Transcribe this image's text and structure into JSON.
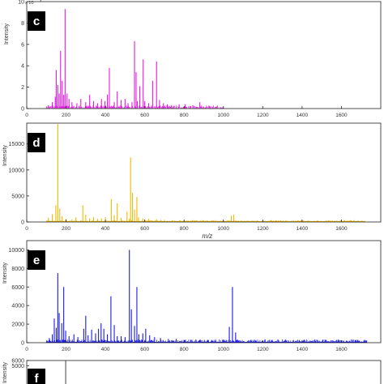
{
  "chart_data": [
    {
      "type": "line",
      "panel_label": "c",
      "ylabel": "Intensity",
      "exponent": "x 10",
      "exponent_power": "4",
      "xlim": [
        0,
        1800
      ],
      "ylim": [
        0,
        10
      ],
      "xticks": [
        "0",
        "200",
        "400",
        "600",
        "800",
        "1000",
        "1200",
        "1400",
        "1600"
      ],
      "yticks": [
        "0",
        "2",
        "4",
        "6",
        "8",
        "10"
      ],
      "color": "#e619e6",
      "peaks": [
        [
          110,
          0.3
        ],
        [
          130,
          0.6
        ],
        [
          145,
          1.1
        ],
        [
          150,
          3.6
        ],
        [
          158,
          2.2
        ],
        [
          165,
          1.4
        ],
        [
          172,
          5.4
        ],
        [
          180,
          2.6
        ],
        [
          188,
          1.3
        ],
        [
          195,
          9.3
        ],
        [
          205,
          1.4
        ],
        [
          215,
          0.9
        ],
        [
          230,
          0.6
        ],
        [
          255,
          0.5
        ],
        [
          275,
          0.9
        ],
        [
          300,
          0.6
        ],
        [
          320,
          1.3
        ],
        [
          340,
          0.7
        ],
        [
          360,
          0.5
        ],
        [
          380,
          0.9
        ],
        [
          398,
          0.7
        ],
        [
          410,
          1.3
        ],
        [
          420,
          3.8
        ],
        [
          445,
          0.6
        ],
        [
          460,
          1.6
        ],
        [
          480,
          0.8
        ],
        [
          500,
          0.9
        ],
        [
          515,
          0.5
        ],
        [
          535,
          0.6
        ],
        [
          548,
          6.3
        ],
        [
          556,
          3.4
        ],
        [
          562,
          0.7
        ],
        [
          575,
          2.1
        ],
        [
          592,
          4.6
        ],
        [
          600,
          0.7
        ],
        [
          620,
          0.5
        ],
        [
          640,
          2.6
        ],
        [
          660,
          4.4
        ],
        [
          675,
          0.8
        ],
        [
          695,
          0.5
        ],
        [
          715,
          0.4
        ],
        [
          735,
          0.3
        ],
        [
          775,
          0.4
        ],
        [
          805,
          0.4
        ],
        [
          845,
          0.3
        ],
        [
          880,
          0.6
        ]
      ],
      "noise": {
        "from": 100,
        "to": 1000,
        "max": 0.3
      }
    },
    {
      "type": "line",
      "panel_label": "d",
      "ylabel": "Intensity",
      "xlabel": "m/z",
      "xlim": [
        0,
        1800
      ],
      "ylim": [
        0,
        19000
      ],
      "xticks": [
        "0",
        "200",
        "400",
        "600",
        "800",
        "1000",
        "1200",
        "1400",
        "1600"
      ],
      "yticks": [
        "0",
        "5000",
        "10000",
        "15000"
      ],
      "color": "#f5b800",
      "baseline_end": 1720,
      "peaks": [
        [
          110,
          800
        ],
        [
          130,
          1500
        ],
        [
          148,
          3200
        ],
        [
          158,
          18800
        ],
        [
          168,
          2600
        ],
        [
          180,
          1100
        ],
        [
          200,
          600
        ],
        [
          230,
          500
        ],
        [
          250,
          900
        ],
        [
          285,
          3200
        ],
        [
          300,
          1400
        ],
        [
          320,
          700
        ],
        [
          340,
          900
        ],
        [
          360,
          600
        ],
        [
          380,
          700
        ],
        [
          400,
          900
        ],
        [
          430,
          4400
        ],
        [
          445,
          1300
        ],
        [
          460,
          3600
        ],
        [
          480,
          800
        ],
        [
          510,
          2000
        ],
        [
          522,
          600
        ],
        [
          528,
          12400
        ],
        [
          538,
          5600
        ],
        [
          548,
          2400
        ],
        [
          560,
          4800
        ],
        [
          568,
          900
        ],
        [
          590,
          700
        ],
        [
          620,
          600
        ],
        [
          660,
          500
        ],
        [
          700,
          400
        ],
        [
          740,
          300
        ],
        [
          780,
          300
        ],
        [
          820,
          300
        ],
        [
          860,
          300
        ],
        [
          900,
          300
        ],
        [
          940,
          300
        ],
        [
          1040,
          1200
        ],
        [
          1052,
          1400
        ]
      ],
      "noise": {
        "from": 100,
        "to": 1720,
        "max": 350
      }
    },
    {
      "type": "line",
      "panel_label": "e",
      "ylabel": "Intensity",
      "xlim": [
        0,
        1800
      ],
      "ylim": [
        0,
        11000
      ],
      "xticks": [
        "0",
        "200",
        "400",
        "600",
        "800",
        "1000",
        "1200",
        "1400",
        "1600"
      ],
      "yticks": [
        "0",
        "2000",
        "4000",
        "6000",
        "8000",
        "10000"
      ],
      "color": "#1a1ae6",
      "baseline_end": 1730,
      "peaks": [
        [
          115,
          500
        ],
        [
          130,
          900
        ],
        [
          140,
          2600
        ],
        [
          150,
          1600
        ],
        [
          158,
          7500
        ],
        [
          165,
          3200
        ],
        [
          178,
          2100
        ],
        [
          188,
          6000
        ],
        [
          198,
          1300
        ],
        [
          215,
          700
        ],
        [
          240,
          900
        ],
        [
          260,
          600
        ],
        [
          290,
          1500
        ],
        [
          300,
          2900
        ],
        [
          312,
          800
        ],
        [
          330,
          1400
        ],
        [
          350,
          1000
        ],
        [
          365,
          1500
        ],
        [
          378,
          2100
        ],
        [
          392,
          1500
        ],
        [
          410,
          900
        ],
        [
          428,
          5000
        ],
        [
          445,
          1900
        ],
        [
          460,
          700
        ],
        [
          480,
          700
        ],
        [
          500,
          600
        ],
        [
          522,
          10000
        ],
        [
          532,
          3600
        ],
        [
          548,
          1800
        ],
        [
          560,
          6000
        ],
        [
          570,
          900
        ],
        [
          590,
          1000
        ],
        [
          605,
          1500
        ],
        [
          625,
          800
        ],
        [
          650,
          600
        ],
        [
          680,
          500
        ],
        [
          720,
          400
        ],
        [
          760,
          400
        ],
        [
          800,
          300
        ],
        [
          840,
          300
        ],
        [
          880,
          300
        ],
        [
          920,
          300
        ],
        [
          960,
          300
        ],
        [
          1000,
          300
        ],
        [
          1030,
          1700
        ],
        [
          1046,
          6000
        ],
        [
          1062,
          1100
        ],
        [
          1070,
          300
        ]
      ],
      "noise": {
        "from": 100,
        "to": 1730,
        "max": 350
      }
    },
    {
      "type": "line",
      "panel_label": "f",
      "ylabel": "Intensity",
      "ylim": [
        0,
        6000
      ],
      "yticks": [
        "5000",
        "6000"
      ],
      "color": "#444444"
    }
  ]
}
